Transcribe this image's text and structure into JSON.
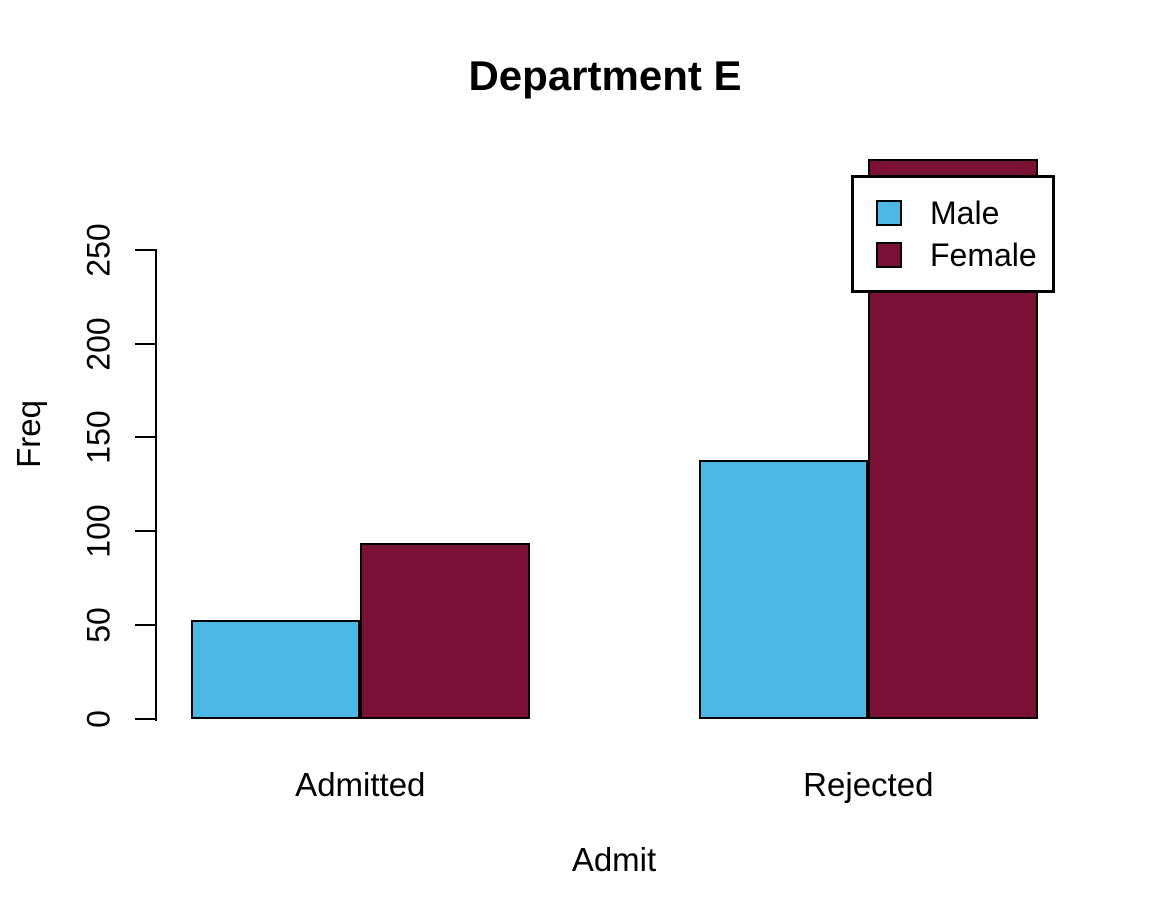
{
  "chart_data": {
    "type": "bar",
    "group_mode": "beside",
    "title": "Department E",
    "xlabel": "Admit",
    "ylabel": "Freq",
    "categories": [
      "Admitted",
      "Rejected"
    ],
    "series": [
      {
        "name": "Male",
        "color": "#4BB8E6",
        "values": [
          53,
          138
        ]
      },
      {
        "name": "Female",
        "color": "#7C1137",
        "values": [
          94,
          299
        ]
      }
    ],
    "ylim": [
      0,
      250
    ],
    "yticks": [
      0,
      50,
      100,
      150,
      200,
      250
    ],
    "grid": false,
    "legend_position": "top-right",
    "background_color": "#FFFFFF",
    "axis_color": "#000000",
    "text_color": "#000000"
  }
}
